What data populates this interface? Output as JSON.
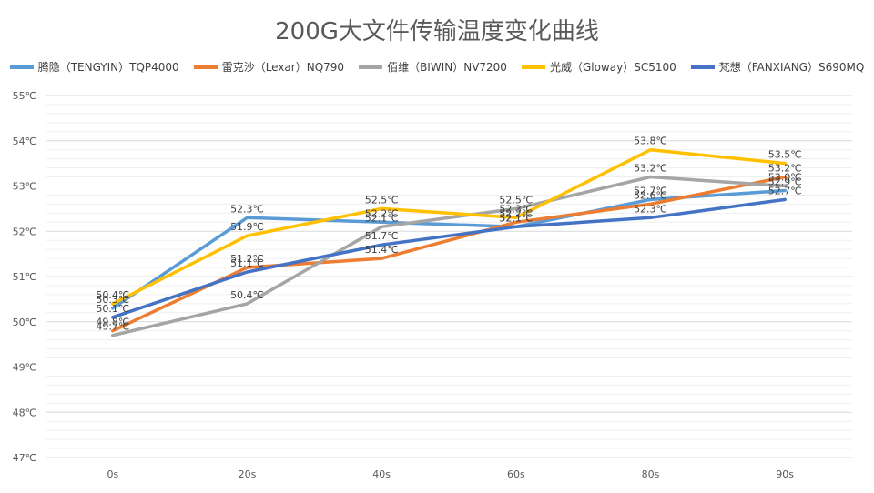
{
  "chart_data": {
    "type": "line",
    "title": "200G大文件传输温度变化曲线",
    "xlabel": "",
    "ylabel": "",
    "categories": [
      "0s",
      "20s",
      "40s",
      "60s",
      "80s",
      "90s"
    ],
    "ylim": [
      47,
      55
    ],
    "ytick_step": 1,
    "y_unit": "℃",
    "grid": true,
    "legend": "top",
    "series": [
      {
        "name": "腾隐（TENGYIN）TQP4000",
        "color": "#5B9BD5",
        "values": [
          50.3,
          52.3,
          52.2,
          52.1,
          52.7,
          52.9
        ]
      },
      {
        "name": "雷克沙（Lexar）NQ790",
        "color": "#ED7D31",
        "values": [
          49.8,
          51.2,
          51.4,
          52.2,
          52.6,
          53.2
        ]
      },
      {
        "name": "佰维（BIWIN）NV7200",
        "color": "#A5A5A5",
        "values": [
          49.7,
          50.4,
          52.1,
          52.5,
          53.2,
          53.0
        ]
      },
      {
        "name": "光威（Gloway）SC5100",
        "color": "#FFC000",
        "values": [
          50.4,
          51.9,
          52.5,
          52.3,
          53.8,
          53.5
        ]
      },
      {
        "name": "梵想（FANXIANG）S690MQ",
        "color": "#4472C4",
        "values": [
          50.1,
          51.1,
          51.7,
          52.1,
          52.3,
          52.7
        ]
      }
    ]
  }
}
